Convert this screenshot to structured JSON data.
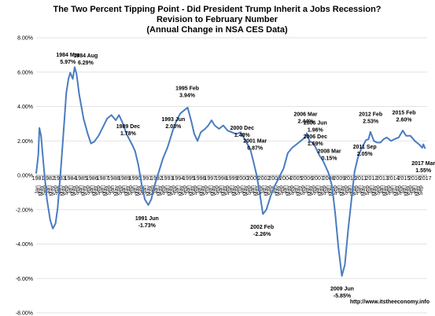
{
  "chart_data": {
    "type": "line",
    "title": [
      "The Two Percent Tipping Point - Did President Trump Inherit a Jobs Recession?",
      "Revision to February Number",
      "(Annual Change in NSA CES Data)"
    ],
    "xlabel": "",
    "ylabel": "",
    "ylim": [
      -8,
      8
    ],
    "y_ticks": [
      "8.00%",
      "6.00%",
      "4.00%",
      "2.00%",
      "0.00%",
      "-2.00%",
      "-4.00%",
      "-6.00%",
      "-8.00%"
    ],
    "x_tick_labels": [
      "1981",
      "1982",
      "1983",
      "1984",
      "1985",
      "1986",
      "1987",
      "1988",
      "1989",
      "1990",
      "1991",
      "1992",
      "1993",
      "1994",
      "1995",
      "1996",
      "1997",
      "1998",
      "1999",
      "2000",
      "2001",
      "2002",
      "2003",
      "2004",
      "2005",
      "2006",
      "2007",
      "2008",
      "2009",
      "2010",
      "2011",
      "2012",
      "2013",
      "2014",
      "2015",
      "2016",
      "2017"
    ],
    "x_minor_labels": [
      "Jan",
      "May",
      "Sep"
    ],
    "grid": true,
    "series": [
      {
        "color": "#4a7cc1",
        "points": [
          [
            1981.0,
            0.1
          ],
          [
            1981.2,
            1.2
          ],
          [
            1981.3,
            2.75
          ],
          [
            1981.45,
            2.3
          ],
          [
            1981.7,
            0.5
          ],
          [
            1982.0,
            -1.4
          ],
          [
            1982.3,
            -2.6
          ],
          [
            1982.55,
            -3.1
          ],
          [
            1982.8,
            -2.8
          ],
          [
            1983.0,
            -1.9
          ],
          [
            1983.3,
            0.4
          ],
          [
            1983.6,
            3.0
          ],
          [
            1983.8,
            4.8
          ],
          [
            1984.0,
            5.6
          ],
          [
            1984.17,
            5.97
          ],
          [
            1984.4,
            5.6
          ],
          [
            1984.58,
            6.29
          ],
          [
            1984.75,
            5.9
          ],
          [
            1985.0,
            4.7
          ],
          [
            1985.4,
            3.3
          ],
          [
            1985.8,
            2.4
          ],
          [
            1986.1,
            1.85
          ],
          [
            1986.4,
            1.95
          ],
          [
            1986.8,
            2.3
          ],
          [
            1987.2,
            2.8
          ],
          [
            1987.6,
            3.3
          ],
          [
            1988.0,
            3.5
          ],
          [
            1988.4,
            3.2
          ],
          [
            1988.7,
            3.5
          ],
          [
            1989.0,
            3.1
          ],
          [
            1989.4,
            2.4
          ],
          [
            1989.92,
            1.78
          ],
          [
            1990.2,
            1.4
          ],
          [
            1990.5,
            0.6
          ],
          [
            1990.8,
            -0.5
          ],
          [
            1991.1,
            -1.4
          ],
          [
            1991.42,
            -1.73
          ],
          [
            1991.7,
            -1.4
          ],
          [
            1992.0,
            -0.6
          ],
          [
            1992.4,
            0.2
          ],
          [
            1992.8,
            1.0
          ],
          [
            1993.2,
            1.6
          ],
          [
            1993.42,
            2.03
          ],
          [
            1993.7,
            2.6
          ],
          [
            1994.0,
            3.1
          ],
          [
            1994.4,
            3.6
          ],
          [
            1995.08,
            3.94
          ],
          [
            1995.4,
            3.2
          ],
          [
            1995.7,
            2.4
          ],
          [
            1996.0,
            2.0
          ],
          [
            1996.3,
            2.5
          ],
          [
            1996.7,
            2.7
          ],
          [
            1997.0,
            2.9
          ],
          [
            1997.3,
            3.2
          ],
          [
            1997.6,
            2.9
          ],
          [
            1998.0,
            2.7
          ],
          [
            1998.4,
            2.9
          ],
          [
            1998.8,
            2.6
          ],
          [
            1999.2,
            2.5
          ],
          [
            1999.6,
            2.4
          ],
          [
            2000.0,
            2.5
          ],
          [
            2000.4,
            2.1
          ],
          [
            2000.92,
            1.48
          ],
          [
            2001.17,
            0.87
          ],
          [
            2001.5,
            0.0
          ],
          [
            2001.8,
            -1.1
          ],
          [
            2002.08,
            -2.26
          ],
          [
            2002.4,
            -2.0
          ],
          [
            2002.8,
            -1.2
          ],
          [
            2003.2,
            -0.6
          ],
          [
            2003.6,
            -0.1
          ],
          [
            2004.0,
            0.4
          ],
          [
            2004.4,
            1.3
          ],
          [
            2004.8,
            1.6
          ],
          [
            2005.2,
            1.8
          ],
          [
            2005.6,
            2.0
          ],
          [
            2006.0,
            2.2
          ],
          [
            2006.17,
            2.44
          ],
          [
            2006.42,
            1.96
          ],
          [
            2006.7,
            1.9
          ],
          [
            2006.92,
            1.69
          ],
          [
            2007.3,
            1.2
          ],
          [
            2007.7,
            0.8
          ],
          [
            2008.17,
            0.15
          ],
          [
            2008.5,
            -0.6
          ],
          [
            2008.8,
            -2.2
          ],
          [
            2009.1,
            -4.2
          ],
          [
            2009.42,
            -5.85
          ],
          [
            2009.7,
            -5.2
          ],
          [
            2010.0,
            -3.2
          ],
          [
            2010.3,
            -1.5
          ],
          [
            2010.6,
            0.2
          ],
          [
            2010.9,
            1.0
          ],
          [
            2011.2,
            1.5
          ],
          [
            2011.67,
            2.05
          ],
          [
            2011.9,
            2.1
          ],
          [
            2012.08,
            2.53
          ],
          [
            2012.4,
            2.0
          ],
          [
            2012.7,
            1.9
          ],
          [
            2013.0,
            1.9
          ],
          [
            2013.3,
            2.1
          ],
          [
            2013.6,
            2.2
          ],
          [
            2014.0,
            2.0
          ],
          [
            2014.3,
            2.1
          ],
          [
            2014.7,
            2.2
          ],
          [
            2015.08,
            2.6
          ],
          [
            2015.4,
            2.3
          ],
          [
            2015.8,
            2.3
          ],
          [
            2016.2,
            2.0
          ],
          [
            2016.6,
            1.8
          ],
          [
            2016.9,
            1.6
          ],
          [
            2017.0,
            1.8
          ],
          [
            2017.17,
            1.55
          ]
        ]
      }
    ],
    "annotations": [
      {
        "label": "1984 Mar",
        "value": "5.97%"
      },
      {
        "label": "1984 Aug",
        "value": "6.29%"
      },
      {
        "label": "1989 Dec",
        "value": "1.78%"
      },
      {
        "label": "1991 Jun",
        "value": "-1.73%"
      },
      {
        "label": "1993 Jun",
        "value": "2.03%"
      },
      {
        "label": "1995 Feb",
        "value": "3.94%"
      },
      {
        "label": "2000 Dec",
        "value": "1.48%"
      },
      {
        "label": "2001 Mar",
        "value": "0.87%"
      },
      {
        "label": "2002 Feb",
        "value": "-2.26%"
      },
      {
        "label": "2006 Mar",
        "value": "2.44%"
      },
      {
        "label": "2006 Jun",
        "value": "1.96%"
      },
      {
        "label": "2006 Dec",
        "value": "1.69%"
      },
      {
        "label": "2008 Mar",
        "value": "0.15%"
      },
      {
        "label": "2009 Jun",
        "value": "-5.85%"
      },
      {
        "label": "2011 Sep",
        "value": "2.05%"
      },
      {
        "label": "2012 Feb",
        "value": "2.53%"
      },
      {
        "label": "2015 Feb",
        "value": "2.60%"
      },
      {
        "label": "2017 Mar",
        "value": "1.55%"
      }
    ],
    "source": "http://www.itstheeconomy.info"
  }
}
